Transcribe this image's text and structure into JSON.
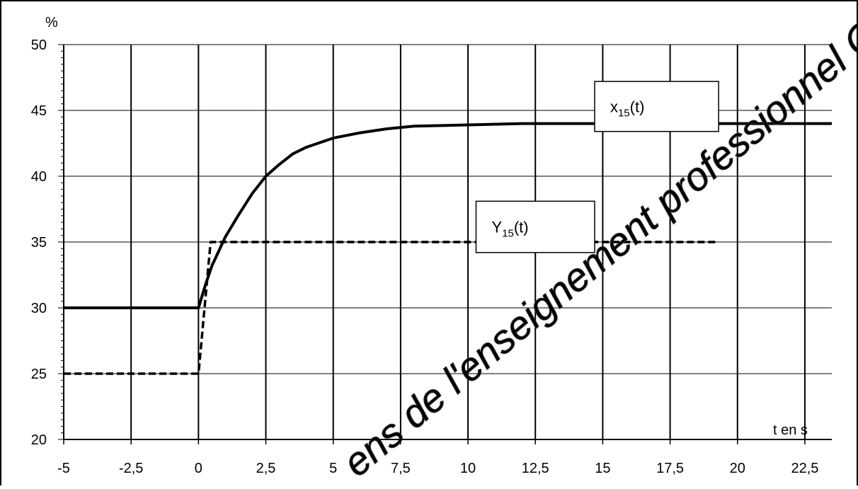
{
  "chart_data": {
    "type": "line",
    "xlabel": "t en s",
    "ylabel": "%",
    "xlim": [
      -5,
      23.5
    ],
    "ylim": [
      20,
      50
    ],
    "x_ticks": [
      -5,
      -2.5,
      0,
      2.5,
      5,
      7.5,
      10,
      12.5,
      15,
      17.5,
      20,
      22.5
    ],
    "x_tick_labels": [
      "-5",
      "-2,5",
      "0",
      "2,5",
      "5",
      "7,5",
      "10",
      "12,5",
      "15",
      "17,5",
      "20",
      "22,5"
    ],
    "y_ticks": [
      20,
      25,
      30,
      35,
      40,
      45,
      50
    ],
    "y_tick_labels": [
      "20",
      "25",
      "30",
      "35",
      "40",
      "45",
      "50"
    ],
    "grid": true,
    "series": [
      {
        "name": "x15(t)",
        "label_main": "x",
        "label_sub": "15",
        "label_tail": "(t)",
        "style": "solid",
        "color": "#000000",
        "x": [
          -5,
          0,
          0.25,
          0.5,
          1,
          1.5,
          2,
          2.5,
          3,
          3.5,
          4,
          5,
          6,
          7,
          8,
          10,
          12,
          15,
          20,
          23.5
        ],
        "y": [
          30,
          30,
          31.7,
          33.2,
          35.4,
          37.1,
          38.7,
          40.0,
          40.9,
          41.7,
          42.2,
          42.9,
          43.3,
          43.6,
          43.8,
          43.9,
          44.0,
          44.0,
          44.0,
          44.0
        ]
      },
      {
        "name": "Y15(t)",
        "label_main": "Y",
        "label_sub": "15",
        "label_tail": "(t)",
        "style": "dashed",
        "color": "#000000",
        "x": [
          -5,
          0,
          0.45,
          19.3
        ],
        "y": [
          25,
          25,
          35,
          35
        ]
      }
    ],
    "annotations": [
      {
        "series": 0,
        "x_range": [
          14.7,
          19.3
        ],
        "y_range": [
          43.4,
          47.2
        ]
      },
      {
        "series": 1,
        "x_range": [
          10.3,
          14.7
        ],
        "y_range": [
          34.2,
          38.1
        ]
      }
    ],
    "watermark": "ens de l'enseignement professionnel Canopé"
  }
}
